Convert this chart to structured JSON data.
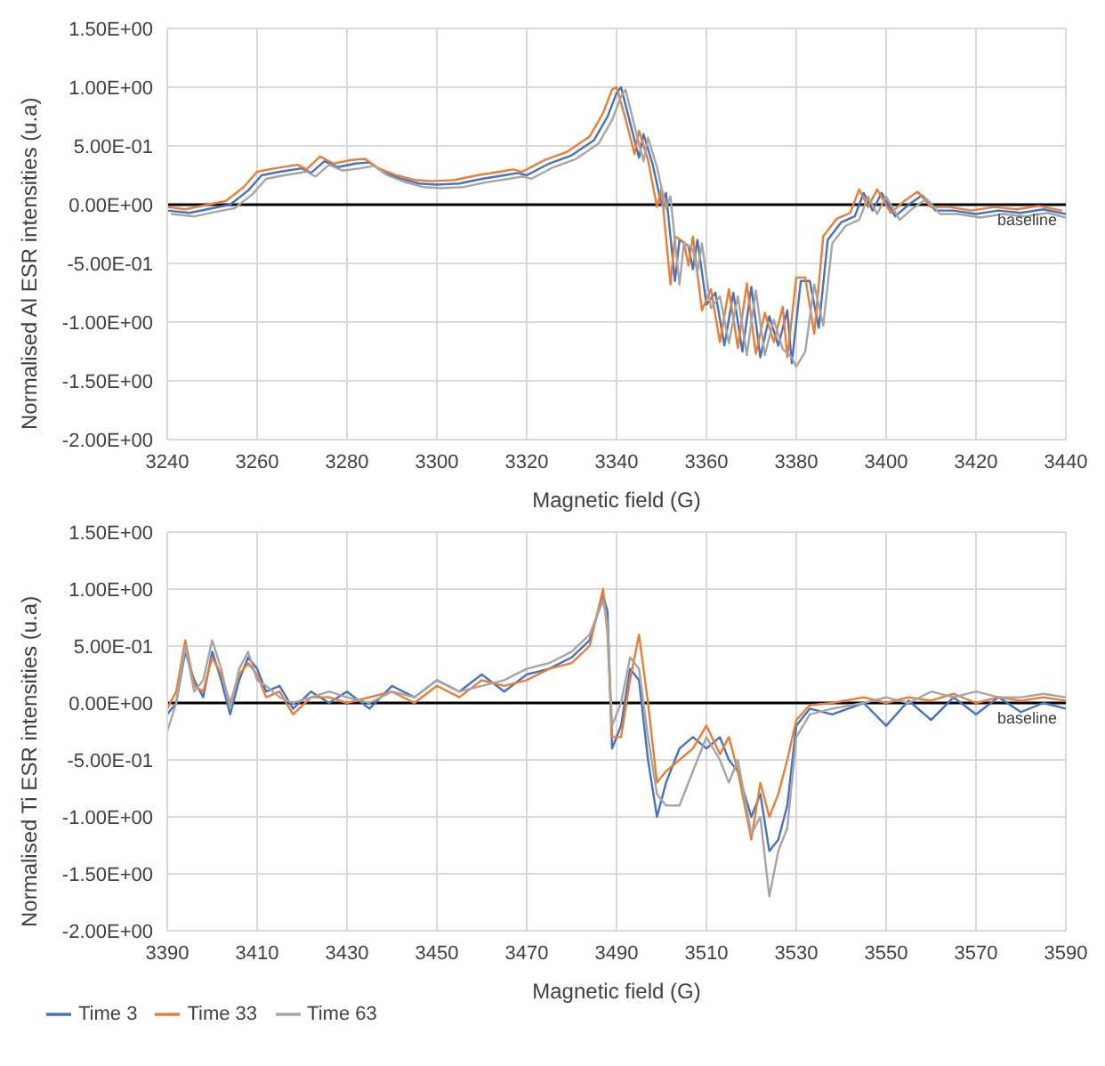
{
  "chart_data": [
    {
      "type": "line",
      "xlabel": "Magnetic field (G)",
      "ylabel": "Normalised Al ESR intensities (u.a)",
      "grid": true,
      "xlim": [
        3240,
        3440
      ],
      "xticks": [
        3240,
        3260,
        3280,
        3300,
        3320,
        3340,
        3360,
        3380,
        3400,
        3420,
        3440
      ],
      "ylim": [
        -2.0,
        1.5
      ],
      "yticks": [
        {
          "value": -2.0,
          "label": "-2.00E+00"
        },
        {
          "value": -1.5,
          "label": "-1.50E+00"
        },
        {
          "value": -1.0,
          "label": "-1.00E+00"
        },
        {
          "value": -0.5,
          "label": "-5.00E-01"
        },
        {
          "value": 0.0,
          "label": "0.00E+00"
        },
        {
          "value": 0.5,
          "label": "5.00E-01"
        },
        {
          "value": 1.0,
          "label": "1.00E+00"
        },
        {
          "value": 1.5,
          "label": "1.50E+00"
        }
      ],
      "ref_lines": [
        {
          "axis": "y",
          "value": 0,
          "label": "baseline",
          "color": "#000000"
        }
      ],
      "x": [
        3240,
        3245,
        3250,
        3254,
        3258,
        3261,
        3265,
        3270,
        3272,
        3275,
        3278,
        3282,
        3285,
        3288,
        3292,
        3296,
        3300,
        3305,
        3310,
        3315,
        3318,
        3320,
        3325,
        3330,
        3335,
        3338,
        3340,
        3341,
        3343,
        3345,
        3346,
        3348,
        3350,
        3351,
        3353,
        3354,
        3356,
        3357,
        3358,
        3360,
        3362,
        3364,
        3366,
        3368,
        3370,
        3372,
        3374,
        3376,
        3378,
        3379,
        3381,
        3383,
        3385,
        3387,
        3390,
        3393,
        3395,
        3397,
        3399,
        3402,
        3405,
        3408,
        3411,
        3415,
        3420,
        3425,
        3430,
        3435,
        3440
      ],
      "series": [
        {
          "color": "#4472c4",
          "values": [
            -0.05,
            -0.07,
            -0.03,
            0.0,
            0.12,
            0.25,
            0.28,
            0.31,
            0.27,
            0.37,
            0.32,
            0.35,
            0.36,
            0.28,
            0.22,
            0.18,
            0.17,
            0.18,
            0.22,
            0.25,
            0.27,
            0.25,
            0.35,
            0.42,
            0.55,
            0.75,
            0.95,
            1.0,
            0.7,
            0.4,
            0.6,
            0.35,
            0.0,
            0.1,
            -0.65,
            -0.3,
            -0.35,
            -0.55,
            -0.3,
            -0.85,
            -0.75,
            -1.2,
            -0.75,
            -1.25,
            -0.7,
            -1.3,
            -0.95,
            -1.2,
            -0.9,
            -1.35,
            -0.65,
            -0.65,
            -1.05,
            -0.3,
            -0.15,
            -0.1,
            0.1,
            -0.05,
            0.1,
            -0.1,
            0.0,
            0.08,
            -0.05,
            -0.05,
            -0.08,
            -0.05,
            -0.07,
            -0.04,
            -0.08
          ]
        },
        {
          "color": "#ed7d31",
          "x": [
            3240,
            3244,
            3249,
            3253,
            3257,
            3260,
            3264,
            3269,
            3271,
            3274,
            3277,
            3281,
            3284,
            3287,
            3291,
            3295,
            3299,
            3304,
            3309,
            3314,
            3317,
            3319,
            3324,
            3329,
            3334,
            3337,
            3339,
            3340,
            3342,
            3344,
            3345,
            3347,
            3349,
            3350,
            3352,
            3353,
            3355,
            3356,
            3357,
            3359,
            3361,
            3363,
            3365,
            3367,
            3369,
            3371,
            3373,
            3375,
            3377,
            3378,
            3380,
            3382,
            3384,
            3386,
            3389,
            3392,
            3394,
            3396,
            3398,
            3401,
            3404,
            3407,
            3410,
            3414,
            3419,
            3424,
            3429,
            3434,
            3439
          ],
          "values": [
            -0.02,
            -0.04,
            0.0,
            0.03,
            0.15,
            0.28,
            0.31,
            0.34,
            0.3,
            0.41,
            0.35,
            0.38,
            0.39,
            0.31,
            0.25,
            0.21,
            0.2,
            0.21,
            0.25,
            0.28,
            0.3,
            0.28,
            0.38,
            0.45,
            0.58,
            0.78,
            0.98,
            1.0,
            0.73,
            0.43,
            0.63,
            0.38,
            -0.02,
            0.13,
            -0.68,
            -0.27,
            -0.32,
            -0.52,
            -0.27,
            -0.9,
            -0.72,
            -1.17,
            -0.72,
            -1.22,
            -0.67,
            -1.27,
            -0.92,
            -1.17,
            -0.87,
            -1.3,
            -0.62,
            -0.62,
            -1.1,
            -0.27,
            -0.12,
            -0.07,
            0.13,
            -0.02,
            0.13,
            -0.07,
            0.03,
            0.11,
            -0.02,
            -0.02,
            -0.05,
            -0.02,
            -0.04,
            -0.01,
            -0.05
          ]
        },
        {
          "color": "#a5a5a5",
          "x": [
            3241,
            3246,
            3251,
            3255,
            3259,
            3262,
            3266,
            3271,
            3273,
            3276,
            3279,
            3283,
            3286,
            3289,
            3293,
            3297,
            3301,
            3306,
            3311,
            3316,
            3319,
            3321,
            3326,
            3331,
            3336,
            3339,
            3341,
            3342,
            3344,
            3346,
            3347,
            3349,
            3351,
            3352,
            3354,
            3355,
            3357,
            3358,
            3359,
            3361,
            3363,
            3365,
            3367,
            3369,
            3371,
            3373,
            3375,
            3377,
            3379,
            3380,
            3382,
            3384,
            3386,
            3388,
            3391,
            3394,
            3396,
            3398,
            3400,
            3403,
            3406,
            3409,
            3412,
            3416,
            3421,
            3426,
            3431,
            3436,
            3440
          ],
          "values": [
            -0.08,
            -0.1,
            -0.06,
            -0.03,
            0.09,
            0.22,
            0.25,
            0.28,
            0.24,
            0.34,
            0.29,
            0.31,
            0.33,
            0.25,
            0.19,
            0.15,
            0.14,
            0.15,
            0.19,
            0.22,
            0.24,
            0.22,
            0.32,
            0.39,
            0.52,
            0.72,
            0.92,
            0.98,
            0.67,
            0.37,
            0.57,
            0.32,
            -0.03,
            0.07,
            -0.68,
            -0.33,
            -0.38,
            -0.58,
            -0.33,
            -0.88,
            -0.78,
            -1.18,
            -0.78,
            -1.28,
            -0.73,
            -1.28,
            -0.98,
            -1.23,
            -1.3,
            -1.38,
            -1.25,
            -0.68,
            -1.03,
            -0.33,
            -0.18,
            -0.13,
            0.07,
            -0.08,
            0.07,
            -0.13,
            -0.03,
            0.05,
            -0.08,
            -0.08,
            -0.11,
            -0.08,
            -0.1,
            -0.07,
            -0.11
          ]
        }
      ]
    },
    {
      "type": "line",
      "xlabel": "Magnetic field (G)",
      "ylabel": "Normalised Ti ESR intensities (u.a)",
      "grid": true,
      "legend": "bottom",
      "xlim": [
        3390,
        3590
      ],
      "xticks": [
        3390,
        3410,
        3430,
        3450,
        3470,
        3490,
        3510,
        3530,
        3550,
        3570,
        3590
      ],
      "ylim": [
        -2.0,
        1.5
      ],
      "yticks": [
        {
          "value": -2.0,
          "label": "-2.00E+00"
        },
        {
          "value": -1.5,
          "label": "-1.50E+00"
        },
        {
          "value": -1.0,
          "label": "-1.00E+00"
        },
        {
          "value": -0.5,
          "label": "-5.00E-01"
        },
        {
          "value": 0.0,
          "label": "0.00E+00"
        },
        {
          "value": 0.5,
          "label": "5.00E-01"
        },
        {
          "value": 1.0,
          "label": "1.00E+00"
        },
        {
          "value": 1.5,
          "label": "1.50E+00"
        }
      ],
      "ref_lines": [
        {
          "axis": "y",
          "value": 0,
          "label": "baseline",
          "color": "#000000"
        }
      ],
      "x": [
        3390,
        3392,
        3394,
        3396,
        3398,
        3400,
        3402,
        3404,
        3406,
        3408,
        3410,
        3412,
        3415,
        3418,
        3422,
        3426,
        3430,
        3435,
        3440,
        3445,
        3450,
        3455,
        3460,
        3465,
        3470,
        3475,
        3480,
        3484,
        3487,
        3488,
        3489,
        3491,
        3493,
        3495,
        3497,
        3499,
        3501,
        3504,
        3507,
        3510,
        3513,
        3515,
        3517,
        3520,
        3522,
        3524,
        3526,
        3528,
        3530,
        3533,
        3538,
        3545,
        3550,
        3555,
        3560,
        3565,
        3570,
        3575,
        3580,
        3585,
        3590
      ],
      "series": [
        {
          "name": "Time 3",
          "color": "#4472c4",
          "values": [
            -0.1,
            0.0,
            0.45,
            0.2,
            0.05,
            0.45,
            0.2,
            -0.1,
            0.2,
            0.4,
            0.3,
            0.1,
            0.15,
            -0.05,
            0.1,
            0.0,
            0.1,
            -0.05,
            0.15,
            0.05,
            0.2,
            0.1,
            0.25,
            0.1,
            0.25,
            0.3,
            0.4,
            0.55,
            0.95,
            0.8,
            -0.4,
            -0.2,
            0.3,
            0.2,
            -0.5,
            -1.0,
            -0.7,
            -0.4,
            -0.3,
            -0.4,
            -0.3,
            -0.5,
            -0.6,
            -1.0,
            -0.8,
            -1.3,
            -1.2,
            -0.9,
            -0.2,
            -0.05,
            -0.1,
            0.0,
            -0.2,
            0.02,
            -0.15,
            0.05,
            -0.1,
            0.05,
            -0.08,
            0.0,
            -0.05
          ]
        },
        {
          "name": "Time 33",
          "color": "#ed7d31",
          "values": [
            -0.05,
            0.1,
            0.55,
            0.15,
            0.1,
            0.4,
            0.25,
            0.0,
            0.25,
            0.35,
            0.25,
            0.05,
            0.1,
            -0.1,
            0.05,
            0.05,
            0.0,
            0.05,
            0.1,
            0.0,
            0.15,
            0.05,
            0.2,
            0.15,
            0.2,
            0.3,
            0.35,
            0.5,
            1.0,
            0.6,
            -0.3,
            -0.3,
            0.2,
            0.6,
            0.0,
            -0.7,
            -0.6,
            -0.5,
            -0.4,
            -0.2,
            -0.45,
            -0.3,
            -0.6,
            -1.2,
            -0.7,
            -1.0,
            -0.8,
            -0.5,
            -0.15,
            -0.02,
            0.0,
            0.05,
            0.0,
            0.05,
            0.02,
            0.08,
            0.0,
            0.05,
            0.02,
            0.05,
            0.02
          ]
        },
        {
          "name": "Time 63",
          "color": "#a5a5a5",
          "values": [
            -0.25,
            0.0,
            0.5,
            0.1,
            0.2,
            0.55,
            0.3,
            -0.05,
            0.3,
            0.45,
            0.2,
            0.15,
            0.05,
            0.0,
            0.05,
            0.1,
            0.05,
            0.0,
            0.1,
            0.05,
            0.2,
            0.1,
            0.15,
            0.2,
            0.3,
            0.35,
            0.45,
            0.6,
            0.9,
            0.7,
            -0.2,
            0.0,
            0.4,
            0.3,
            -0.3,
            -0.8,
            -0.9,
            -0.9,
            -0.6,
            -0.3,
            -0.5,
            -0.7,
            -0.5,
            -1.15,
            -1.0,
            -1.7,
            -1.3,
            -1.1,
            -0.3,
            -0.1,
            -0.05,
            0.0,
            0.05,
            0.0,
            0.1,
            0.05,
            0.1,
            0.05,
            0.05,
            0.08,
            0.05
          ]
        }
      ]
    }
  ]
}
